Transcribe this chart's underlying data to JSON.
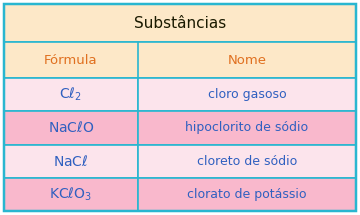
{
  "title": "Substâncias",
  "header": [
    "Fórmula",
    "Nome"
  ],
  "names": [
    "cloro gasoso",
    "hipoclorito de sódio",
    "cloreto de sódio",
    "clorato de potássio"
  ],
  "formulas": [
    [
      "C",
      "ℓ",
      "_2",
      ""
    ],
    [
      "NaC",
      "ℓ",
      "O",
      ""
    ],
    [
      "NaC",
      "ℓ",
      "",
      ""
    ],
    [
      "KC",
      "ℓ",
      "O",
      "_3"
    ]
  ],
  "color_title_bg": "#fde8c8",
  "color_header_bg": "#fde8c8",
  "color_row_1": "#fce4ec",
  "color_row_2": "#f9b8cc",
  "color_row_3": "#fce4ec",
  "color_row_4": "#f9b8cc",
  "color_border": "#29b6d0",
  "color_text_title": "#1a1a00",
  "color_text_header": "#e07020",
  "color_text_row": "#3060c0",
  "title_fontsize": 11,
  "header_fontsize": 9.5,
  "row_fontsize": 9,
  "col_split": 0.38
}
